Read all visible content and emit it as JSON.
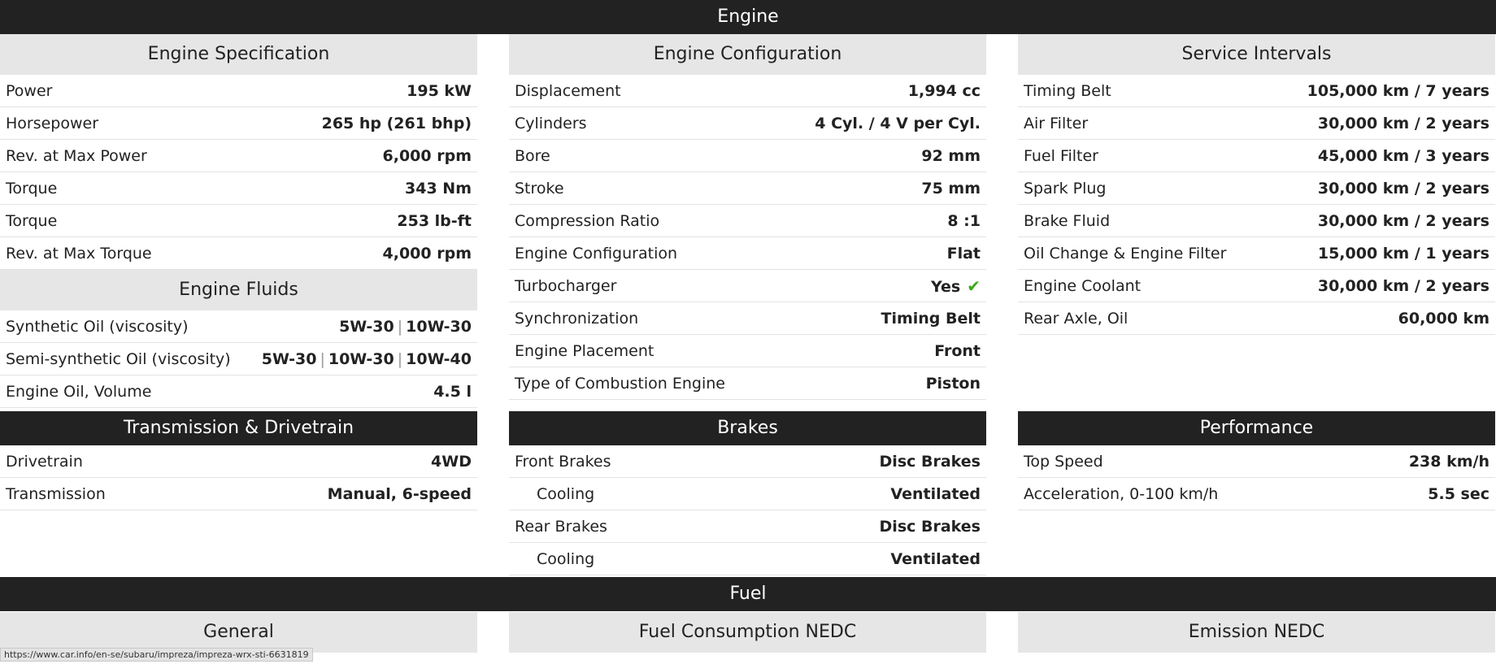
{
  "sections": {
    "engine": "Engine",
    "fuel": "Fuel"
  },
  "engine_spec": {
    "title": "Engine Specification",
    "rows": [
      {
        "label": "Power",
        "value": "195 kW"
      },
      {
        "label": "Horsepower",
        "value": "265 hp (261 bhp)"
      },
      {
        "label": "Rev. at Max Power",
        "value": "6,000 rpm"
      },
      {
        "label": "Torque",
        "value": "343 Nm"
      },
      {
        "label": "Torque",
        "value": "253 lb-ft"
      },
      {
        "label": "Rev. at Max Torque",
        "value": "4,000 rpm"
      }
    ]
  },
  "engine_fluids": {
    "title": "Engine Fluids",
    "rows": [
      {
        "label": "Synthetic Oil (viscosity)",
        "values": [
          "5W-30",
          "10W-30"
        ]
      },
      {
        "label": "Semi-synthetic Oil (viscosity)",
        "values": [
          "5W-30",
          "10W-30",
          "10W-40"
        ]
      },
      {
        "label": "Engine Oil, Volume",
        "value": "4.5 l"
      }
    ]
  },
  "engine_config": {
    "title": "Engine Configuration",
    "rows": [
      {
        "label": "Displacement",
        "value": "1,994 cc"
      },
      {
        "label": "Cylinders",
        "value": "4 Cyl. / 4 V per Cyl."
      },
      {
        "label": "Bore",
        "value": "92 mm"
      },
      {
        "label": "Stroke",
        "value": "75 mm"
      },
      {
        "label": "Compression Ratio",
        "value": "8 :1"
      },
      {
        "label": "Engine Configuration",
        "value": "Flat"
      },
      {
        "label": "Turbocharger",
        "value": "Yes",
        "icon": "check-icon",
        "icon_color": "#3aa81c"
      },
      {
        "label": "Synchronization",
        "value": "Timing Belt"
      },
      {
        "label": "Engine Placement",
        "value": "Front"
      },
      {
        "label": "Type of Combustion Engine",
        "value": "Piston"
      }
    ]
  },
  "service_intervals": {
    "title": "Service Intervals",
    "rows": [
      {
        "label": "Timing Belt",
        "value": "105,000 km / 7 years"
      },
      {
        "label": "Air Filter",
        "value": "30,000 km / 2 years"
      },
      {
        "label": "Fuel Filter",
        "value": "45,000 km / 3 years"
      },
      {
        "label": "Spark Plug",
        "value": "30,000 km / 2 years"
      },
      {
        "label": "Brake Fluid",
        "value": "30,000 km / 2 years"
      },
      {
        "label": "Oil Change & Engine Filter",
        "value": "15,000 km / 1 years"
      },
      {
        "label": "Engine Coolant",
        "value": "30,000 km / 2 years"
      },
      {
        "label": "Rear Axle, Oil",
        "value": "60,000 km"
      }
    ]
  },
  "transmission": {
    "title": "Transmission & Drivetrain",
    "rows": [
      {
        "label": "Drivetrain",
        "value": "4WD"
      },
      {
        "label": "Transmission",
        "value": "Manual, 6-speed"
      }
    ]
  },
  "brakes": {
    "title": "Brakes",
    "rows": [
      {
        "label": "Front Brakes",
        "value": "Disc Brakes"
      },
      {
        "label": "Cooling",
        "value": "Ventilated"
      },
      {
        "label": "Rear Brakes",
        "value": "Disc Brakes"
      },
      {
        "label": "Cooling",
        "value": "Ventilated"
      }
    ]
  },
  "performance": {
    "title": "Performance",
    "rows": [
      {
        "label": "Top Speed",
        "value": "238 km/h"
      },
      {
        "label": "Acceleration, 0-100 km/h",
        "value": "5.5 sec"
      }
    ]
  },
  "fuel_subheaders": {
    "general": "General",
    "consumption": "Fuel Consumption NEDC",
    "emission": "Emission NEDC"
  },
  "status_url": "https://www.car.info/en-se/subaru/impreza/impreza-wrx-sti-6631819",
  "colors": {
    "band": "#222222",
    "subheader": "#e6e6e6",
    "check": "#3aa81c"
  }
}
